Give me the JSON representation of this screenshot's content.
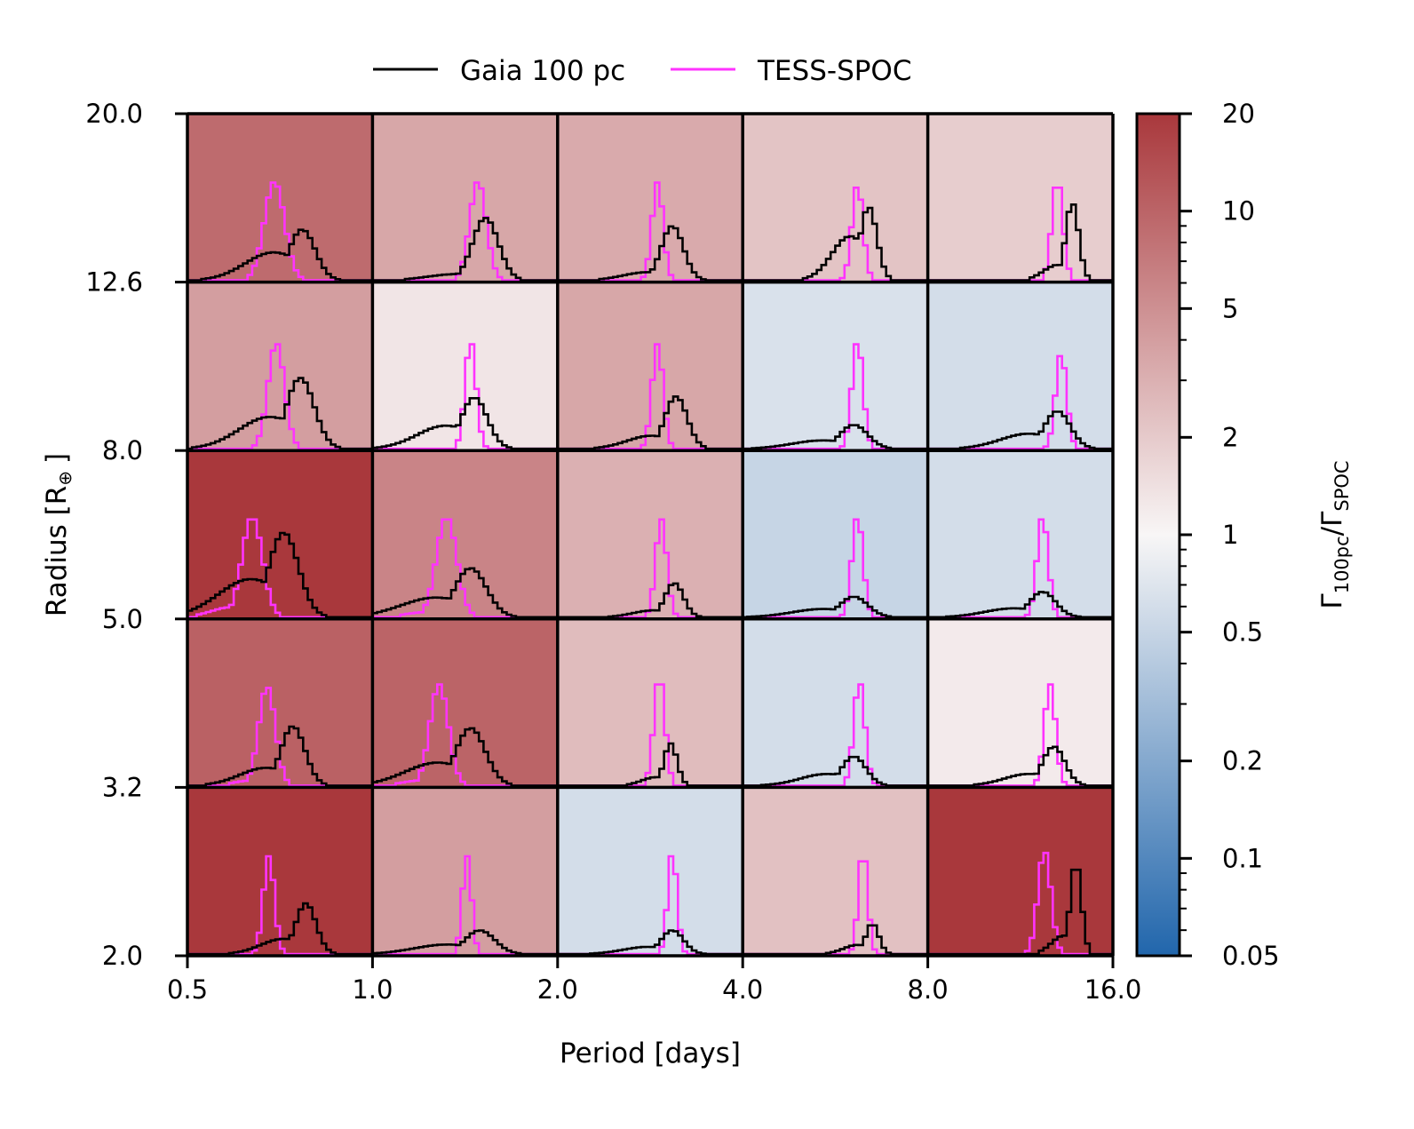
{
  "chart_data": {
    "type": "heatmap",
    "title": "",
    "xlabel": "Period [days]",
    "ylabel": "Radius [R",
    "ylabel_symbol": "⊕",
    "ylabel_close": "]",
    "x_ticks": [
      "0.5",
      "1.0",
      "2.0",
      "4.0",
      "8.0",
      "16.0"
    ],
    "y_ticks": [
      "2.0",
      "3.2",
      "5.0",
      "8.0",
      "12.6",
      "20.0"
    ],
    "legend": {
      "placement": "top",
      "entries": [
        {
          "name": "Gaia 100 pc",
          "color": "#000000"
        },
        {
          "name": "TESS-SPOC",
          "color": "#ff33ff"
        }
      ]
    },
    "colorbar": {
      "label_gamma": "Γ",
      "label_sub1": "100pc",
      "label_slash": "/",
      "label_sub2": "SPOC",
      "scale": "log",
      "range": [
        0.05,
        20
      ],
      "ticks": [
        {
          "label": "20",
          "value": 20
        },
        {
          "label": "10",
          "value": 10
        },
        {
          "label": "5",
          "value": 5
        },
        {
          "label": "2",
          "value": 2
        },
        {
          "label": "1",
          "value": 1
        },
        {
          "label": "0.5",
          "value": 0.5
        },
        {
          "label": "0.2",
          "value": 0.2
        },
        {
          "label": "0.1",
          "value": 0.1
        },
        {
          "label": "0.05",
          "value": 0.05
        }
      ],
      "colors": [
        "#2166ac",
        "#f8f6f6",
        "#a9383c"
      ]
    },
    "cells": [
      [
        {
          "ratio": 9.0,
          "hist": {
            "g_c": 0.62,
            "g_w": 0.07,
            "g_h": 0.3,
            "g_t": 0.55,
            "s_c": 0.47,
            "s_w": 0.055,
            "s_h": 0.58,
            "s_t": 0
          }
        },
        {
          "ratio": 3.5,
          "hist": {
            "g_c": 0.61,
            "g_w": 0.07,
            "g_h": 0.37,
            "g_t": 0.1,
            "s_c": 0.57,
            "s_w": 0.045,
            "s_h": 0.58,
            "s_t": 0
          }
        },
        {
          "ratio": 3.3,
          "hist": {
            "g_c": 0.62,
            "g_w": 0.06,
            "g_h": 0.32,
            "g_t": 0.15,
            "s_c": 0.54,
            "s_w": 0.03,
            "s_h": 0.58,
            "s_t": 0
          }
        },
        {
          "ratio": 2.2,
          "hist": {
            "g_c": 0.68,
            "g_w": 0.045,
            "g_h": 0.43,
            "g_t": 0.6,
            "s_c": 0.62,
            "s_w": 0.03,
            "s_h": 0.55,
            "s_t": 0
          }
        },
        {
          "ratio": 1.9,
          "hist": {
            "g_c": 0.78,
            "g_w": 0.035,
            "g_h": 0.45,
            "g_t": 0.2,
            "s_c": 0.7,
            "s_w": 0.03,
            "s_h": 0.55,
            "s_t": 0
          }
        }
      ],
      [
        {
          "ratio": 4.0,
          "hist": {
            "g_c": 0.61,
            "g_w": 0.075,
            "g_h": 0.42,
            "g_t": 0.45,
            "s_c": 0.48,
            "s_w": 0.045,
            "s_h": 0.62,
            "s_t": 0
          }
        },
        {
          "ratio": 1.3,
          "hist": {
            "g_c": 0.55,
            "g_w": 0.07,
            "g_h": 0.3,
            "g_t": 0.45,
            "s_c": 0.53,
            "s_w": 0.03,
            "s_h": 0.62,
            "s_t": 0
          }
        },
        {
          "ratio": 3.5,
          "hist": {
            "g_c": 0.64,
            "g_w": 0.06,
            "g_h": 0.31,
            "g_t": 0.25,
            "s_c": 0.54,
            "s_w": 0.03,
            "s_h": 0.62,
            "s_t": 0
          }
        },
        {
          "ratio": 0.65,
          "hist": {
            "g_c": 0.6,
            "g_w": 0.075,
            "g_h": 0.14,
            "g_t": 0.35,
            "s_c": 0.62,
            "s_w": 0.03,
            "s_h": 0.62,
            "s_t": 0
          }
        },
        {
          "ratio": 0.6,
          "hist": {
            "g_c": 0.7,
            "g_w": 0.07,
            "g_h": 0.22,
            "g_t": 0.4,
            "s_c": 0.72,
            "s_w": 0.03,
            "s_h": 0.55,
            "s_t": 0
          }
        }
      ],
      [
        {
          "ratio": 20.0,
          "hist": {
            "g_c": 0.52,
            "g_w": 0.08,
            "g_h": 0.5,
            "g_t": 0.45,
            "s_c": 0.35,
            "s_w": 0.055,
            "s_h": 0.58,
            "s_t": 0.1
          }
        },
        {
          "ratio": 6.0,
          "hist": {
            "g_c": 0.53,
            "g_w": 0.085,
            "g_h": 0.29,
            "g_t": 0.4,
            "s_c": 0.4,
            "s_w": 0.055,
            "s_h": 0.58,
            "s_t": 0.05
          }
        },
        {
          "ratio": 3.0,
          "hist": {
            "g_c": 0.63,
            "g_w": 0.05,
            "g_h": 0.2,
            "g_t": 0.2,
            "s_c": 0.56,
            "s_w": 0.03,
            "s_h": 0.58,
            "s_t": 0
          }
        },
        {
          "ratio": 0.5,
          "hist": {
            "g_c": 0.6,
            "g_w": 0.075,
            "g_h": 0.12,
            "g_t": 0.4,
            "s_c": 0.62,
            "s_w": 0.03,
            "s_h": 0.58,
            "s_t": 0
          }
        },
        {
          "ratio": 0.6,
          "hist": {
            "g_c": 0.62,
            "g_w": 0.07,
            "g_h": 0.15,
            "g_t": 0.35,
            "s_c": 0.62,
            "s_w": 0.03,
            "s_h": 0.58,
            "s_t": 0
          }
        }
      ],
      [
        {
          "ratio": 10.5,
          "hist": {
            "g_c": 0.57,
            "g_w": 0.065,
            "g_h": 0.35,
            "g_t": 0.3,
            "s_c": 0.43,
            "s_w": 0.045,
            "s_h": 0.58,
            "s_t": 0.05
          }
        },
        {
          "ratio": 10.0,
          "hist": {
            "g_c": 0.53,
            "g_w": 0.08,
            "g_h": 0.34,
            "g_t": 0.4,
            "s_c": 0.36,
            "s_w": 0.05,
            "s_h": 0.6,
            "s_t": 0.05
          }
        },
        {
          "ratio": 2.5,
          "hist": {
            "g_c": 0.61,
            "g_w": 0.035,
            "g_h": 0.25,
            "g_t": 0.2,
            "s_c": 0.55,
            "s_w": 0.03,
            "s_h": 0.6,
            "s_t": 0
          }
        },
        {
          "ratio": 0.6,
          "hist": {
            "g_c": 0.6,
            "g_w": 0.065,
            "g_h": 0.17,
            "g_t": 0.4,
            "s_c": 0.63,
            "s_w": 0.03,
            "s_h": 0.6,
            "s_t": 0
          }
        },
        {
          "ratio": 1.2,
          "hist": {
            "g_c": 0.68,
            "g_w": 0.06,
            "g_h": 0.23,
            "g_t": 0.3,
            "s_c": 0.66,
            "s_w": 0.03,
            "s_h": 0.6,
            "s_t": 0
          }
        }
      ],
      [
        {
          "ratio": 20.0,
          "hist": {
            "g_c": 0.64,
            "g_w": 0.055,
            "g_h": 0.3,
            "g_t": 0.3,
            "s_c": 0.44,
            "s_w": 0.03,
            "s_h": 0.58,
            "s_t": 0
          }
        },
        {
          "ratio": 4.0,
          "hist": {
            "g_c": 0.58,
            "g_w": 0.08,
            "g_h": 0.14,
            "g_t": 0.4,
            "s_c": 0.51,
            "s_w": 0.025,
            "s_h": 0.58,
            "s_t": 0
          }
        },
        {
          "ratio": 0.6,
          "hist": {
            "g_c": 0.62,
            "g_w": 0.06,
            "g_h": 0.14,
            "g_t": 0.3,
            "s_c": 0.62,
            "s_w": 0.025,
            "s_h": 0.58,
            "s_t": 0
          }
        },
        {
          "ratio": 2.3,
          "hist": {
            "g_c": 0.7,
            "g_w": 0.035,
            "g_h": 0.17,
            "g_t": 0.3,
            "s_c": 0.65,
            "s_w": 0.025,
            "s_h": 0.55,
            "s_t": 0
          }
        },
        {
          "ratio": 20.0,
          "hist": {
            "g_c": 0.8,
            "g_w": 0.03,
            "g_h": 0.5,
            "g_t": 0.2,
            "s_c": 0.63,
            "s_w": 0.035,
            "s_h": 0.6,
            "s_t": 0
          }
        }
      ]
    ]
  }
}
